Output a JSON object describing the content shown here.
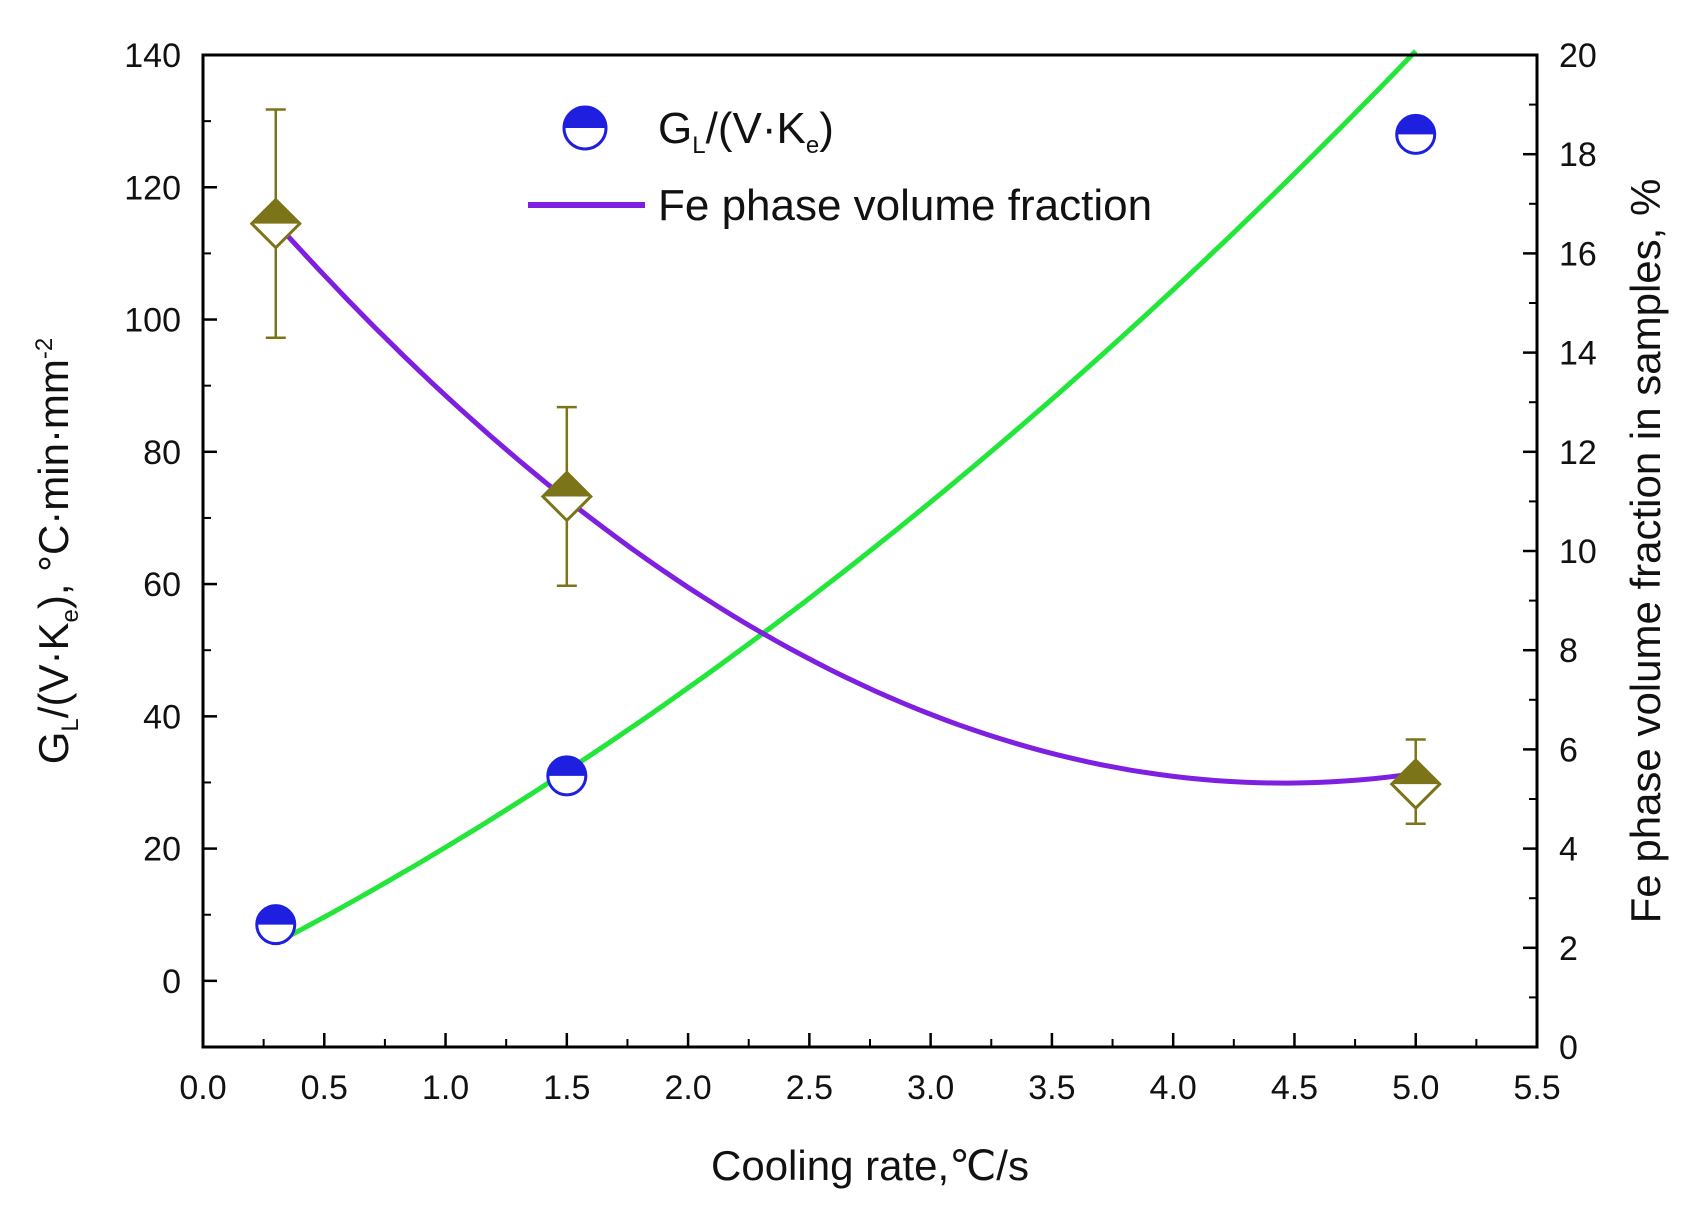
{
  "chart_data": {
    "type": "scatter",
    "title": "",
    "xlabel": "Cooling rate,℃/s",
    "ylabel_left": {
      "main": "G",
      "sub1": "L",
      "mid": "/(V·K",
      "sub2": "e",
      "tail": "), °C·min·mm",
      "sup": "-2"
    },
    "ylabel_right": "Fe phase volume fraction in samples, %",
    "xlim": [
      0.0,
      5.5
    ],
    "ylim_left": [
      -10,
      140
    ],
    "ylim_right": [
      0,
      20
    ],
    "x_ticks": [
      "0.0",
      "0.5",
      "1.0",
      "1.5",
      "2.0",
      "2.5",
      "3.0",
      "3.5",
      "4.0",
      "4.5",
      "5.0",
      "5.5"
    ],
    "y_left_ticks": [
      "0",
      "20",
      "40",
      "60",
      "80",
      "100",
      "120",
      "140"
    ],
    "y_right_ticks": [
      "0",
      "2",
      "4",
      "6",
      "8",
      "10",
      "12",
      "14",
      "16",
      "18",
      "20"
    ],
    "series": [
      {
        "name": "G_L/(V·K_e)",
        "axis": "left",
        "marker": "half-circle",
        "color": "#1f1fe0",
        "points": [
          {
            "x": 0.3,
            "y": 8.5
          },
          {
            "x": 1.5,
            "y": 31
          },
          {
            "x": 5.0,
            "y": 128
          }
        ],
        "fit_color": "#22e63a",
        "fit_coeffs": [
          0.1,
          18.1,
          2.0
        ]
      },
      {
        "name": "Fe phase volume fraction",
        "axis": "right",
        "marker": "half-diamond",
        "color": "#7c7418",
        "points": [
          {
            "x": 0.3,
            "y": 16.6,
            "err_low": 14.3,
            "err_high": 18.9
          },
          {
            "x": 1.5,
            "y": 11.1,
            "err_low": 9.3,
            "err_high": 12.9
          },
          {
            "x": 5.0,
            "y": 5.3,
            "err_low": 4.5,
            "err_high": 6.2
          }
        ],
        "fit_color": "#7f1fe0",
        "fit_coeffs": [
          18.31,
          -5.83,
          0.6542
        ]
      }
    ],
    "legend": {
      "position": "top-center",
      "entries": [
        {
          "main": "G",
          "sub1": "L",
          "mid": "/(V·K",
          "sub2": "e",
          "tail": ")",
          "color": "#1f1fe0"
        },
        {
          "label": "Fe phase volume fraction",
          "color": "#7f1fe0"
        }
      ]
    }
  }
}
